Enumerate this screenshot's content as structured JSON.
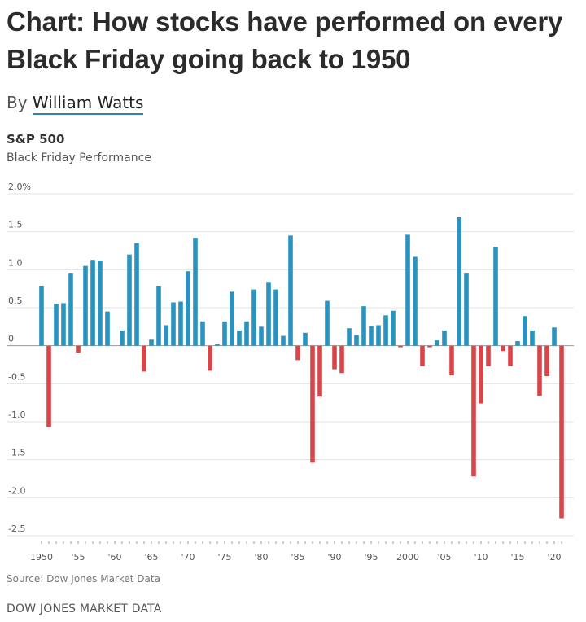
{
  "headline": "Chart: How stocks have performed on every Black Friday going back to 1950",
  "byline": {
    "prefix": "By",
    "author": "William Watts"
  },
  "chart_data": {
    "type": "bar",
    "title": "S&P 500",
    "subtitle": "Black Friday Performance",
    "source": "Source: Dow Jones Market Data",
    "ylim": [
      -2.5,
      2.0
    ],
    "y_ticks": [
      2.0,
      1.5,
      1.0,
      0.5,
      0,
      -0.5,
      -1.0,
      -1.5,
      -2.0,
      -2.5
    ],
    "y_tick_labels": [
      "2.0%",
      "1.5",
      "1.0",
      "0.5",
      "0",
      "-0.5",
      "-1.0",
      "-1.5",
      "-2.0",
      "-2.5"
    ],
    "x_ticks": [
      1950,
      1955,
      1960,
      1965,
      1970,
      1975,
      1980,
      1985,
      1990,
      1995,
      2000,
      2005,
      2010,
      2015,
      2020
    ],
    "x_tick_labels": [
      "1950",
      "'55",
      "'60",
      "'65",
      "'70",
      "'75",
      "'80",
      "'85",
      "'90",
      "'95",
      "2000",
      "'05",
      "'10",
      "'15",
      "'20"
    ],
    "grid": true,
    "positive_color": "#2b93bf",
    "negative_color": "#d9464a",
    "years": [
      1950,
      1951,
      1952,
      1953,
      1954,
      1955,
      1956,
      1957,
      1958,
      1959,
      1960,
      1961,
      1962,
      1963,
      1964,
      1965,
      1966,
      1967,
      1968,
      1969,
      1970,
      1971,
      1972,
      1973,
      1974,
      1975,
      1976,
      1977,
      1978,
      1979,
      1980,
      1981,
      1982,
      1983,
      1984,
      1985,
      1986,
      1987,
      1988,
      1989,
      1990,
      1991,
      1992,
      1993,
      1994,
      1995,
      1996,
      1997,
      1998,
      1999,
      2000,
      2001,
      2002,
      2003,
      2004,
      2005,
      2006,
      2007,
      2008,
      2009,
      2010,
      2011,
      2012,
      2013,
      2014,
      2015,
      2016,
      2017,
      2018,
      2019,
      2020,
      2021
    ],
    "values": [
      0.79,
      -1.07,
      0.55,
      0.56,
      0.96,
      -0.09,
      1.05,
      1.13,
      1.12,
      0.45,
      null,
      0.2,
      1.2,
      1.35,
      -0.34,
      0.08,
      0.79,
      0.27,
      0.57,
      0.58,
      0.98,
      1.42,
      0.32,
      -0.33,
      0.02,
      0.32,
      0.71,
      0.2,
      0.32,
      0.74,
      0.25,
      0.84,
      0.74,
      0.13,
      1.45,
      -0.19,
      0.17,
      -1.54,
      -0.67,
      0.59,
      -0.31,
      -0.36,
      0.23,
      0.14,
      0.52,
      0.26,
      0.27,
      0.4,
      0.46,
      -0.02,
      1.46,
      1.17,
      -0.27,
      -0.02,
      0.07,
      0.2,
      -0.39,
      1.69,
      0.96,
      -1.72,
      -0.76,
      -0.27,
      1.3,
      -0.07,
      -0.27,
      0.06,
      0.39,
      0.2,
      -0.66,
      -0.4,
      0.24,
      -2.27
    ]
  },
  "footer": {
    "brand": "DOW JONES MARKET DATA"
  }
}
